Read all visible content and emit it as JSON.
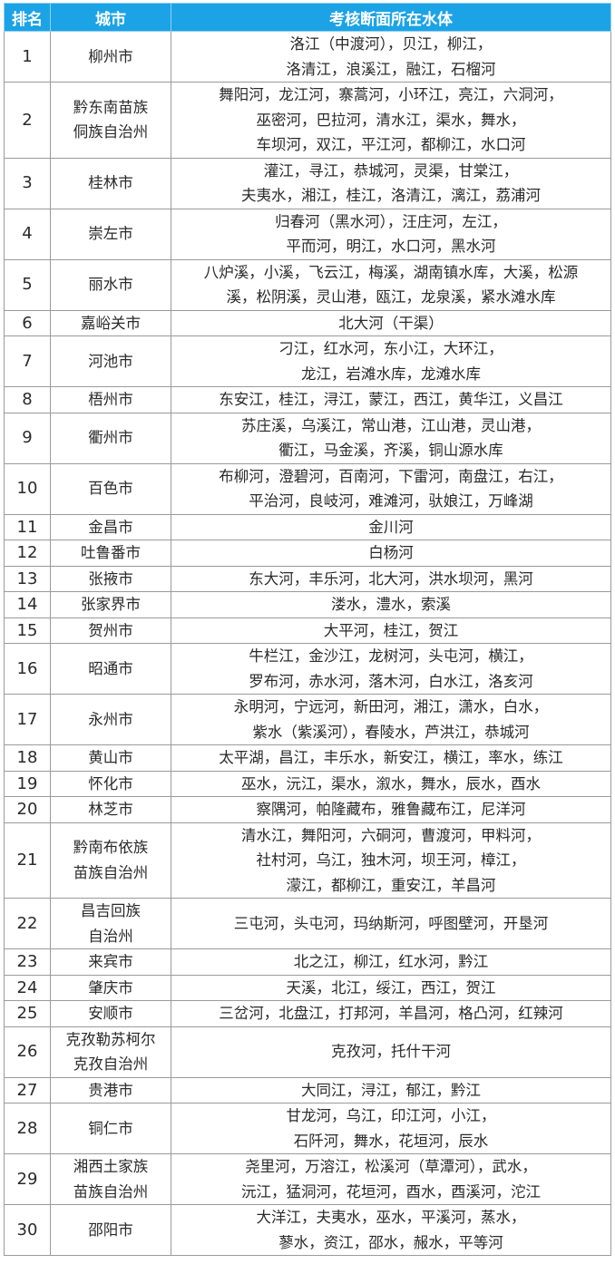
{
  "header": {
    "rank": "排名",
    "city": "城市",
    "water": "考核断面所在水体"
  },
  "header_color": "#1ca3e6",
  "rows": [
    {
      "rank": "1",
      "city": [
        "柳州市"
      ],
      "water": [
        "洛江（中渡河），贝江，柳江，",
        "洛清江，浪溪江，融江，石榴河"
      ]
    },
    {
      "rank": "2",
      "city": [
        "黔东南苗族",
        "侗族自治州"
      ],
      "water": [
        "舞阳河，龙江河，寨蒿河，小环江，亮江，六洞河，",
        "巫密河，巴拉河，清水江，渠水，舞水，",
        "车坝河，双江，平江河，都柳江，水口河"
      ]
    },
    {
      "rank": "3",
      "city": [
        "桂林市"
      ],
      "water": [
        "灌江，寻江，恭城河，灵渠，甘棠江，",
        "夫夷水，湘江，桂江，洛清江，漓江，荔浦河"
      ]
    },
    {
      "rank": "4",
      "city": [
        "崇左市"
      ],
      "water": [
        "归春河（黑水河），汪庄河，左江，",
        "平而河，明江，水口河，黑水河"
      ]
    },
    {
      "rank": "5",
      "city": [
        "丽水市"
      ],
      "water": [
        "八炉溪，小溪，飞云江，梅溪，湖南镇水库，大溪，松源",
        "溪，松阴溪，灵山港，瓯江，龙泉溪，紧水滩水库"
      ]
    },
    {
      "rank": "6",
      "city": [
        "嘉峪关市"
      ],
      "water": [
        "北大河（干渠）"
      ]
    },
    {
      "rank": "7",
      "city": [
        "河池市"
      ],
      "water": [
        "刁江，红水河，东小江，大环江，",
        "龙江，岩滩水库，龙滩水库"
      ]
    },
    {
      "rank": "8",
      "city": [
        "梧州市"
      ],
      "water": [
        "东安江，桂江，浔江，蒙江，西江，黄华江，义昌江"
      ]
    },
    {
      "rank": "9",
      "city": [
        "衢州市"
      ],
      "water": [
        "苏庄溪，乌溪江，常山港，江山港，灵山港，",
        "衢江，马金溪，齐溪，铜山源水库"
      ]
    },
    {
      "rank": "10",
      "city": [
        "百色市"
      ],
      "water": [
        "布柳河，澄碧河，百南河，下雷河，南盘江，右江，",
        "平治河，良岐河，难滩河，驮娘江，万峰湖"
      ]
    },
    {
      "rank": "11",
      "city": [
        "金昌市"
      ],
      "water": [
        "金川河"
      ]
    },
    {
      "rank": "12",
      "city": [
        "吐鲁番市"
      ],
      "water": [
        "白杨河"
      ]
    },
    {
      "rank": "13",
      "city": [
        "张掖市"
      ],
      "water": [
        "东大河，丰乐河，北大河，洪水坝河，黑河"
      ]
    },
    {
      "rank": "14",
      "city": [
        "张家界市"
      ],
      "water": [
        "溇水，澧水，索溪"
      ]
    },
    {
      "rank": "15",
      "city": [
        "贺州市"
      ],
      "water": [
        "大平河，桂江，贺江"
      ]
    },
    {
      "rank": "16",
      "city": [
        "昭通市"
      ],
      "water": [
        "牛栏江，金沙江，龙树河，头屯河，横江，",
        "罗布河，赤水河，落木河，白水江，洛亥河"
      ]
    },
    {
      "rank": "17",
      "city": [
        "永州市"
      ],
      "water": [
        "永明河，宁远河，新田河，湘江，潇水，白水，",
        "紫水（紫溪河），春陵水，芦洪江，恭城河"
      ]
    },
    {
      "rank": "18",
      "city": [
        "黄山市"
      ],
      "water": [
        "太平湖，昌江，丰乐水，新安江，横江，率水，练江"
      ]
    },
    {
      "rank": "19",
      "city": [
        "怀化市"
      ],
      "water": [
        "巫水，沅江，渠水，溆水，舞水，辰水，酉水"
      ]
    },
    {
      "rank": "20",
      "city": [
        "林芝市"
      ],
      "water": [
        "察隅河，帕隆藏布，雅鲁藏布江，尼洋河"
      ]
    },
    {
      "rank": "21",
      "city": [
        "黔南布依族",
        "苗族自治州"
      ],
      "water": [
        "清水江，舞阳河，六硐河，曹渡河，甲料河，",
        "社村河，乌江，独木河，坝王河，樟江，",
        "濛江，都柳江，重安江，羊昌河"
      ]
    },
    {
      "rank": "22",
      "city": [
        "昌吉回族",
        "自治州"
      ],
      "water": [
        "三屯河，头屯河，玛纳斯河，呼图壁河，开垦河"
      ]
    },
    {
      "rank": "23",
      "city": [
        "来宾市"
      ],
      "water": [
        "北之江，柳江，红水河，黔江"
      ]
    },
    {
      "rank": "24",
      "city": [
        "肇庆市"
      ],
      "water": [
        "天溪，北江，绥江，西江，贺江"
      ]
    },
    {
      "rank": "25",
      "city": [
        "安顺市"
      ],
      "water": [
        "三岔河，北盘江，打邦河，羊昌河，格凸河，红辣河"
      ]
    },
    {
      "rank": "26",
      "city": [
        "克孜勒苏柯尔",
        "克孜自治州"
      ],
      "water": [
        "克孜河，托什干河"
      ]
    },
    {
      "rank": "27",
      "city": [
        "贵港市"
      ],
      "water": [
        "大同江，浔江，郁江，黔江"
      ]
    },
    {
      "rank": "28",
      "city": [
        "铜仁市"
      ],
      "water": [
        "甘龙河，乌江，印江河，小江，",
        "石阡河，舞水，花垣河，辰水"
      ]
    },
    {
      "rank": "29",
      "city": [
        "湘西土家族",
        "苗族自治州"
      ],
      "water": [
        "尧里河，万溶江，松溪河（草潭河），武水，",
        "沅江，猛洞河，花垣河，酉水，酉溪河，沱江"
      ]
    },
    {
      "rank": "30",
      "city": [
        "邵阳市"
      ],
      "water": [
        "大洋江，夫夷水，巫水，平溪河，蒸水，",
        "蓼水，资江，邵水，赧水，平等河"
      ]
    }
  ]
}
